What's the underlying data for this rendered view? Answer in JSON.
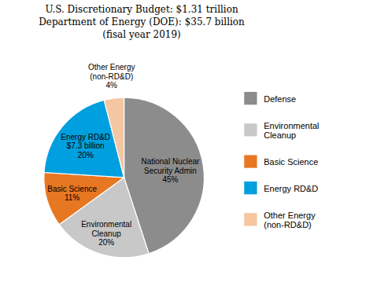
{
  "chart_data": {
    "type": "pie",
    "title": "U.S. Discretionary Budget: $1.31 trillion\nDepartment of Energy (DOE): $35.7 billion\n(fisal year 2019)",
    "categories": [
      "Defense",
      "Environmental\nCleanup",
      "Basic Science",
      "Energy RD&D",
      "Other Energy\n(non-RD&D)"
    ],
    "values": [
      45,
      20,
      11,
      20,
      4
    ],
    "value_labels": [
      "National Nuclear\nSecurity Admin\n45%",
      "Environmental\nCleanup\n20%",
      "Basic Science\n11%",
      "Energy RD&D\n$7.3 billion\n20%",
      "Other Energy\n(non-RD&D)\n4%"
    ],
    "colors": [
      "#8c8c8c",
      "#c8c8c8",
      "#e87722",
      "#009fdf",
      "#f5c6a0"
    ],
    "data_labels": true,
    "legend": "right"
  }
}
